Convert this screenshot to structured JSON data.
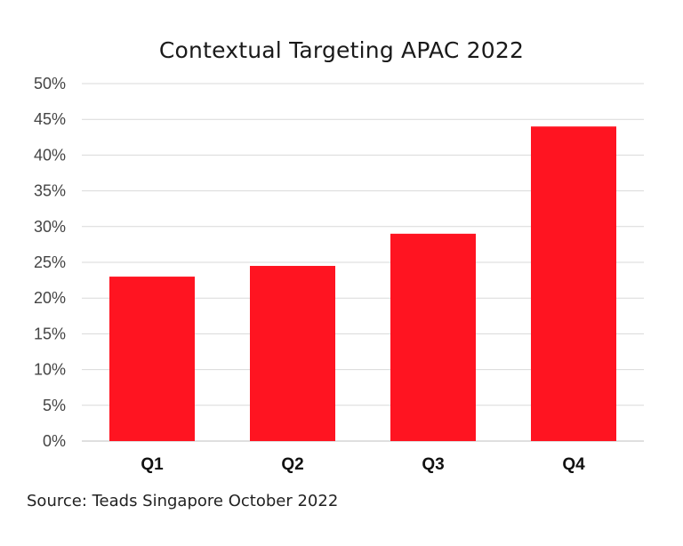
{
  "chart_data": {
    "type": "bar",
    "title": "Contextual Targeting APAC 2022",
    "categories": [
      "Q1",
      "Q2",
      "Q3",
      "Q4"
    ],
    "values": [
      23,
      24.5,
      29,
      44
    ],
    "ylim": [
      0,
      50
    ],
    "yticks": [
      "0%",
      "5%",
      "10%",
      "15%",
      "20%",
      "25%",
      "30%",
      "35%",
      "40%",
      "45%",
      "50%"
    ],
    "xlabel": "",
    "ylabel": "",
    "grid": true,
    "bar_color": "#ff1421",
    "grid_color": "#d9d9d9"
  },
  "source": "Source: Teads Singapore October 2022"
}
